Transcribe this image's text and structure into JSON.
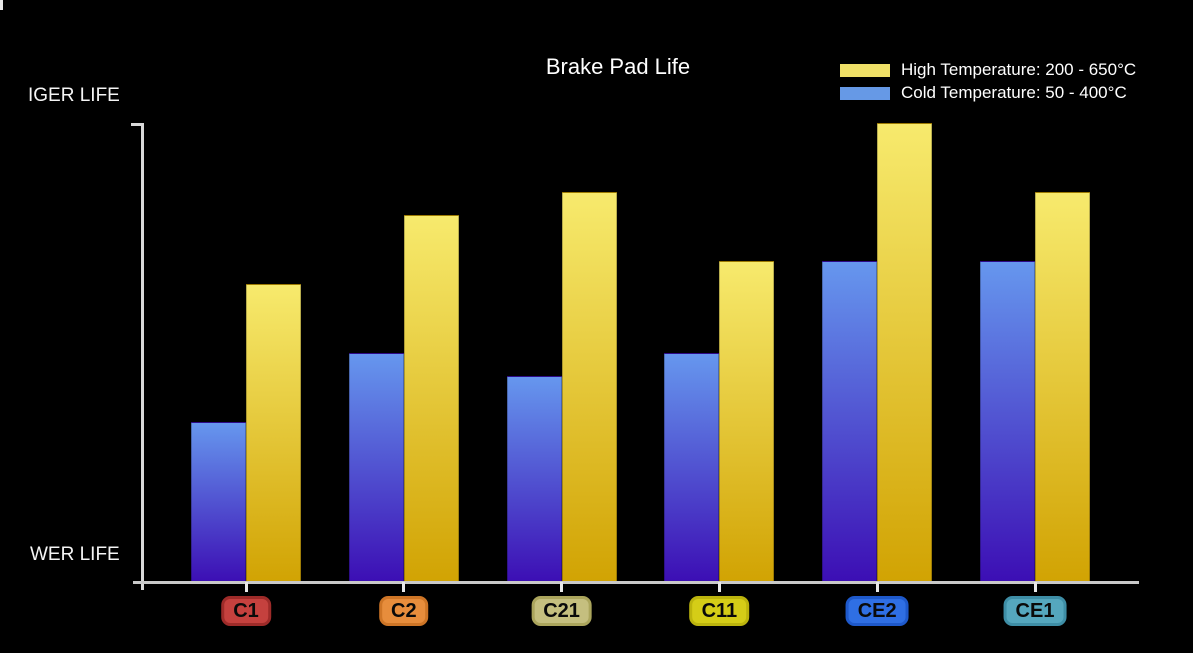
{
  "title": "Brake Pad Life",
  "y_axis": {
    "top_label": "IGER LIFE",
    "bottom_label": "WER LIFE"
  },
  "legend": [
    {
      "label": "High Temperature: 200 - 650°C",
      "color": "#efe067"
    },
    {
      "label": "Cold Temperature: 50 - 400°C",
      "color": "#6699e6"
    }
  ],
  "chart_data": {
    "type": "bar",
    "title": "Brake Pad Life",
    "categories": [
      "C1",
      "C2",
      "C21",
      "C11",
      "CE2",
      "CE1"
    ],
    "series": [
      {
        "name": "Cold Temperature: 50 - 400°C",
        "values": [
          35,
          50,
          45,
          50,
          70,
          70
        ],
        "color_top": "#6697ee",
        "color_bottom": "#3c0eb4"
      },
      {
        "name": "High Temperature: 200 - 650°C",
        "values": [
          65,
          80,
          85,
          70,
          100,
          85
        ],
        "color_top": "#f7ea6d",
        "color_bottom": "#d1a303"
      }
    ],
    "ylabel_top": "IGER LIFE",
    "ylabel_bottom": "WER LIFE",
    "ylim": [
      0,
      100
    ],
    "grid": false,
    "legend_position": "top-right",
    "background": "#000000",
    "category_badges": [
      {
        "label": "C1",
        "fill": "#c5413e",
        "border": "#9e2b29"
      },
      {
        "label": "C2",
        "fill": "#e78d3c",
        "border": "#ce7526"
      },
      {
        "label": "C21",
        "fill": "#c5bf7f",
        "border": "#aba55c"
      },
      {
        "label": "C11",
        "fill": "#d5cd17",
        "border": "#bcb40d"
      },
      {
        "label": "CE2",
        "fill": "#2f6fe4",
        "border": "#1e59cb"
      },
      {
        "label": "CE1",
        "fill": "#55a7be",
        "border": "#3e8ea6"
      }
    ]
  }
}
